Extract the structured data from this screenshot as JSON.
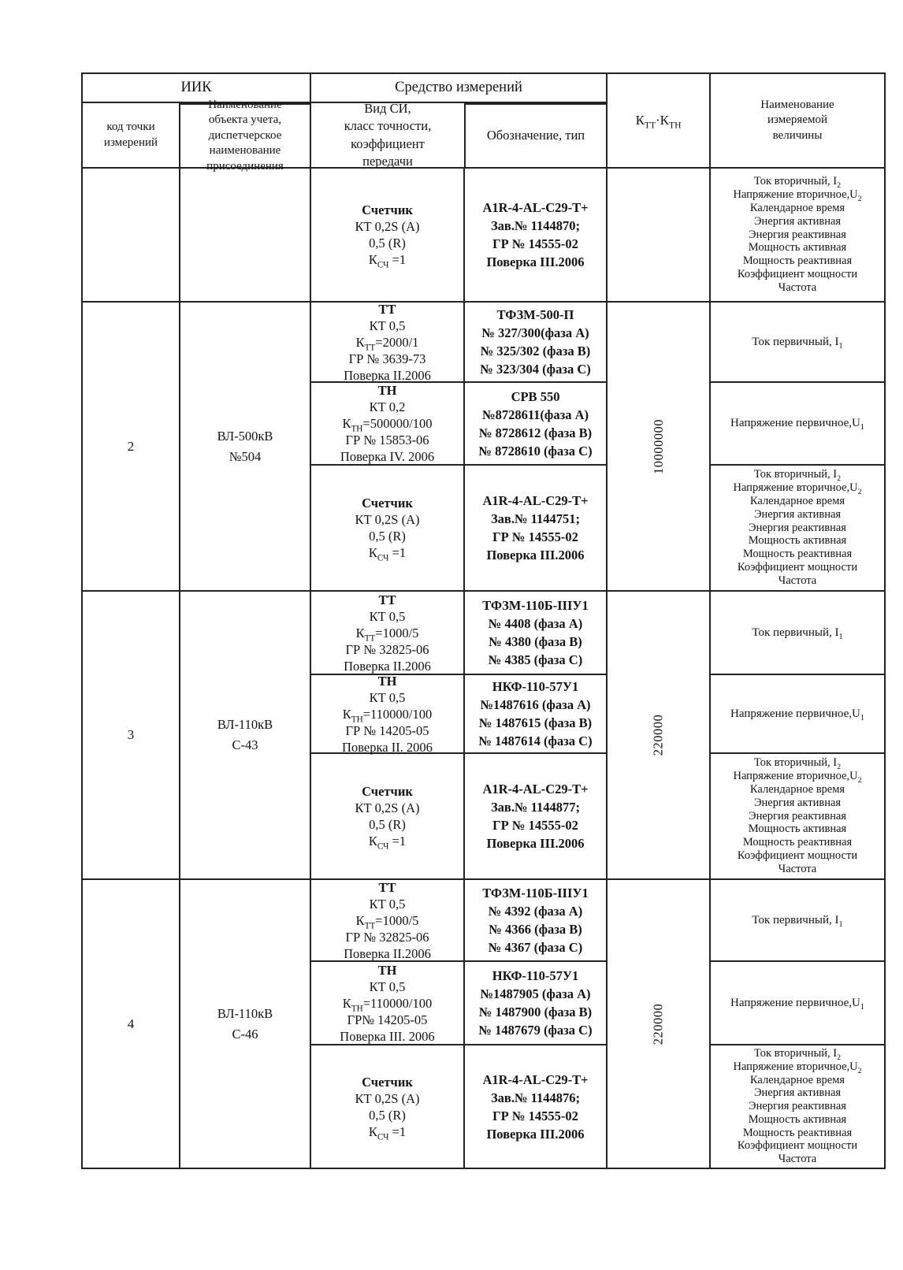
{
  "header": {
    "iik": "ИИК",
    "sredstvo": "Средство измерений",
    "code": "код точки\nизмерений",
    "object": "Наименование\nобъекта учета,\nдиспетчерское\nнаименование\nприсоединения",
    "vid": "Вид СИ,\nкласс точности,\nкоэффициент\nпередачи",
    "des": "Обозначение, тип",
    "k": {
      "p1": "К",
      "s1": "ТТ",
      "p2": "·К",
      "s2": "ТН"
    },
    "meas": "Наименование\nизмеряемой\nвеличины"
  },
  "common": {
    "counter_vid": [
      {
        "pre": "Счетчик",
        "bold": true
      },
      {
        "pre": "КТ 0,2S (А)"
      },
      {
        "pre": "0,5 (R)"
      },
      {
        "pre": "К",
        "sub": "СЧ",
        "post": " =1"
      }
    ],
    "meas_i1": [
      {
        "pre": "Ток первичный, I",
        "sub": "1"
      }
    ],
    "meas_u1": [
      {
        "pre": "Напряжение первичное,U",
        "sub": "1"
      }
    ],
    "meas_list": [
      {
        "pre": "Ток  вторичный, I",
        "sub": "2"
      },
      {
        "pre": "Напряжение вторичное,U",
        "sub": "2"
      },
      {
        "pre": "Календарное время"
      },
      {
        "pre": "Энергия активная"
      },
      {
        "pre": "Энергия реактивная"
      },
      {
        "pre": "Мощность активная"
      },
      {
        "pre": "Мощность реактивная"
      },
      {
        "pre": "Коэффициент мощности"
      },
      {
        "pre": "Частота"
      }
    ]
  },
  "blocks": [
    {
      "code": "",
      "object": "",
      "ktt": "",
      "counter_des": [
        "А1R-4-АL-С29-Т+",
        "Зав.№ 1144870;",
        "ГР №  14555-02",
        "Поверка III.2006"
      ]
    },
    {
      "code": "2",
      "object": "ВЛ-500кВ\n№504",
      "ktt": "10000000",
      "tt": {
        "vid": [
          {
            "pre": "ТТ",
            "bold": true
          },
          {
            "pre": "КТ 0,5"
          },
          {
            "pre": "К",
            "sub": "ТТ",
            "post": "=2000/1"
          },
          {
            "pre": "ГР № 3639-73"
          },
          {
            "pre": "Поверка II.2006"
          }
        ],
        "des": [
          "ТФЗМ-500-П",
          "№ 327/300(фаза А)",
          "№  325/302 (фаза В)",
          "№ 323/304 (фаза С)"
        ]
      },
      "tn": {
        "vid": [
          {
            "pre": "ТН",
            "bold": true
          },
          {
            "pre": "КТ 0,2"
          },
          {
            "pre": "К",
            "sub": "ТН",
            "post": "=500000/100"
          },
          {
            "pre": "ГР № 15853-06"
          },
          {
            "pre": "Поверка IV. 2006"
          }
        ],
        "des": [
          "СРВ 550",
          "№8728611(фаза А)",
          "№  8728612 (фаза В)",
          "№ 8728610 (фаза С)"
        ]
      },
      "counter_des": [
        "А1R-4-АL-С29-Т+",
        "Зав.№ 1144751;",
        "ГР №  14555-02",
        "Поверка  III.2006"
      ]
    },
    {
      "code": "3",
      "object": "ВЛ-110кВ\nС-43",
      "ktt": "220000",
      "tt": {
        "vid": [
          {
            "pre": "ТТ",
            "bold": true
          },
          {
            "pre": "КТ 0,5"
          },
          {
            "pre": "К",
            "sub": "ТТ",
            "post": "=1000/5"
          },
          {
            "pre": "ГР № 32825-06"
          },
          {
            "pre": "Поверка II.2006"
          }
        ],
        "des": [
          "ТФЗМ-110Б-IIIУ1",
          "№ 4408 (фаза А)",
          "№  4380  (фаза В)",
          "№ 4385  (фаза С)"
        ]
      },
      "tn": {
        "vid": [
          {
            "pre": "ТН",
            "bold": true
          },
          {
            "pre": "КТ 0,5"
          },
          {
            "pre": "К",
            "sub": "ТН",
            "post": "=110000/100"
          },
          {
            "pre": "ГР № 14205-05"
          },
          {
            "pre": "Поверка II. 2006"
          }
        ],
        "des": [
          "НКФ-110-57У1",
          "№1487616 (фаза А)",
          "№ 1487615 (фаза В)",
          "№ 1487614 (фаза С)"
        ]
      },
      "counter_des": [
        "А1R-4-АL-С29-Т+",
        "Зав.№ 1144877;",
        "ГР №  14555-02",
        "Поверка  III.2006"
      ]
    },
    {
      "code": "4",
      "object": "ВЛ-110кВ\nС-46",
      "ktt": "220000",
      "tt": {
        "vid": [
          {
            "pre": "ТТ",
            "bold": true
          },
          {
            "pre": "КТ 0,5"
          },
          {
            "pre": "К",
            "sub": "ТТ",
            "post": "=1000/5"
          },
          {
            "pre": "ГР № 32825-06"
          },
          {
            "pre": "Поверка II.2006"
          }
        ],
        "des": [
          "ТФЗМ-110Б-IIIУ1",
          "№ 4392 (фаза А)",
          "№  4366  (фаза В)",
          "№ 4367  (фаза С)"
        ]
      },
      "tn": {
        "vid": [
          {
            "pre": "ТН",
            "bold": true
          },
          {
            "pre": "КТ 0,5"
          },
          {
            "pre": "К",
            "sub": "ТН",
            "post": "=110000/100"
          },
          {
            "pre": "ГР№ 14205-05"
          },
          {
            "pre": "Поверка III. 2006"
          }
        ],
        "des": [
          "НКФ-110-57У1",
          "№1487905 (фаза А)",
          "№ 1487900 (фаза В)",
          "№ 1487679 (фаза С)"
        ]
      },
      "counter_des": [
        "А1R-4-АL-С29-Т+",
        "Зав.№ 1144876;",
        "ГР №  14555-02",
        "Поверка  III.2006"
      ]
    }
  ]
}
